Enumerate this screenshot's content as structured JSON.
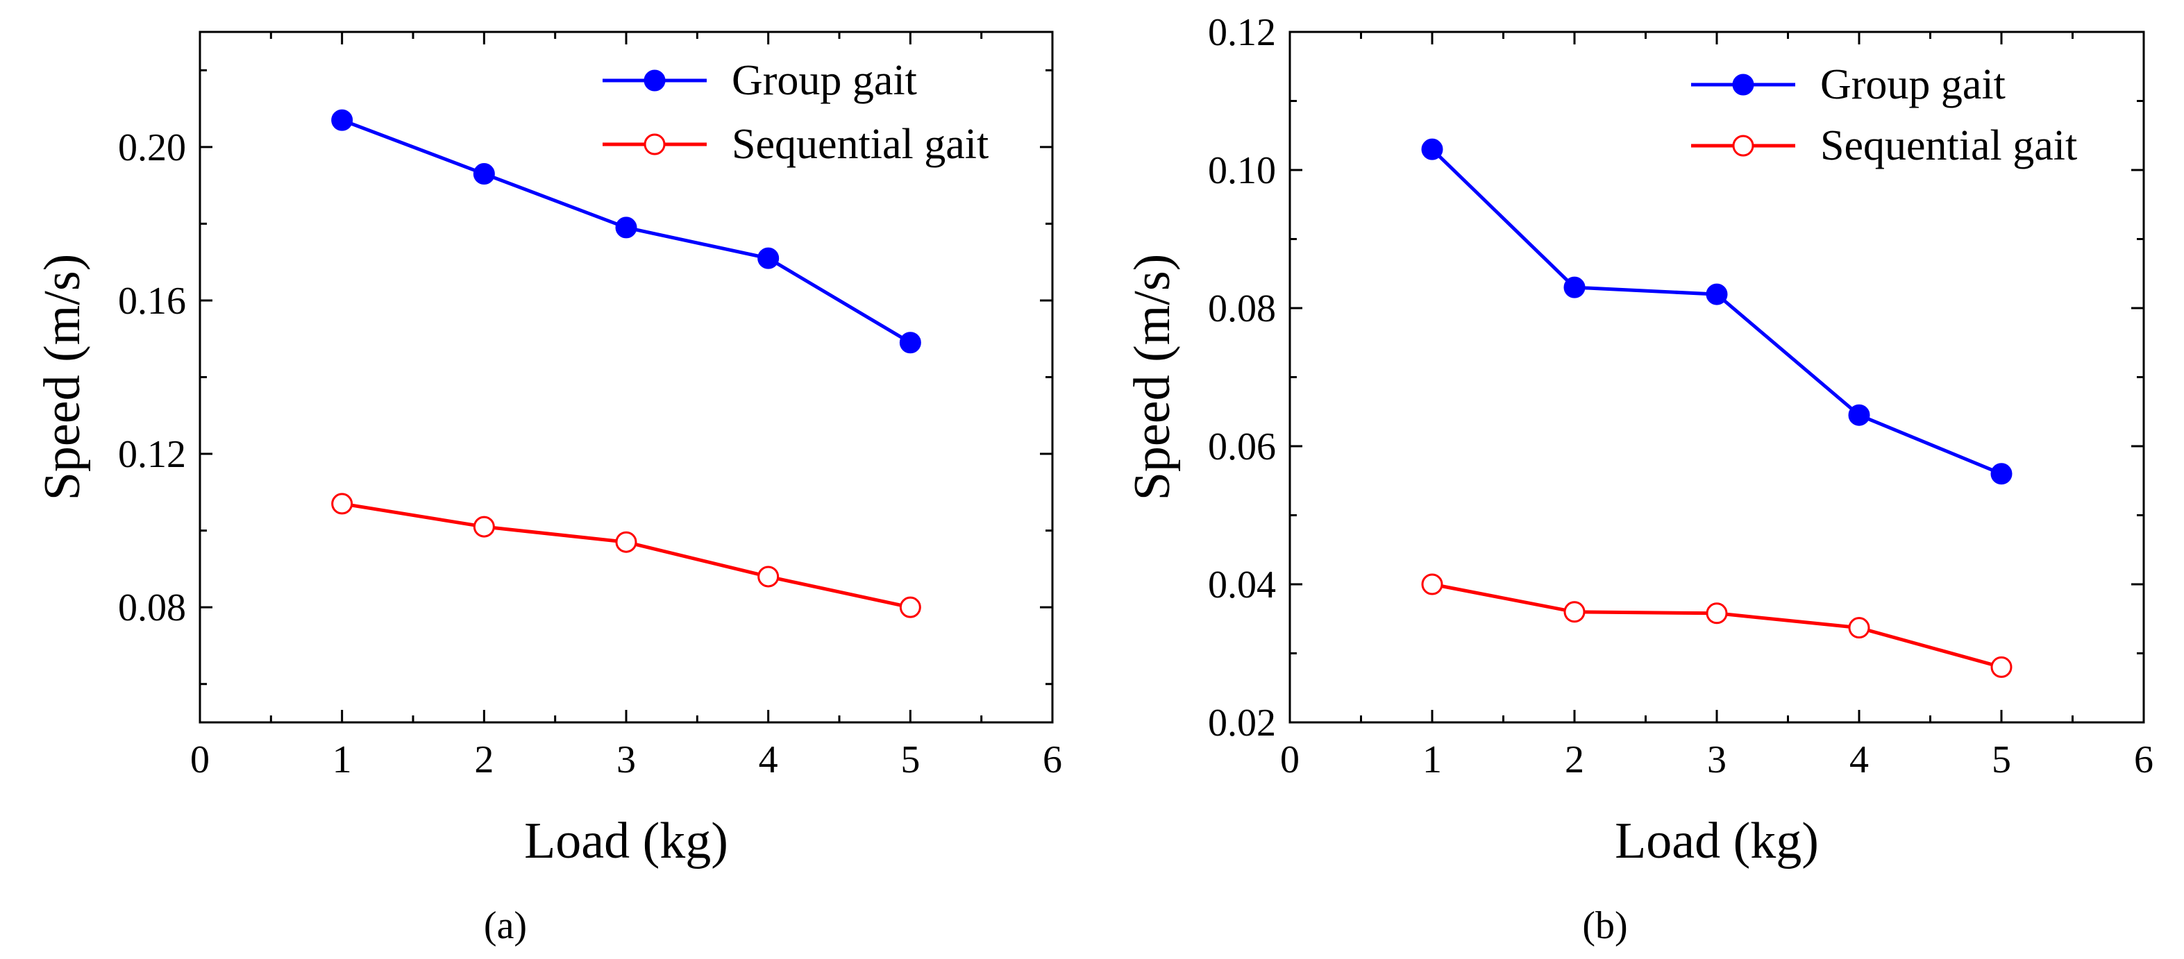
{
  "chart_data": [
    {
      "type": "line",
      "panel_label": "(a)",
      "xlabel": "Load (kg)",
      "ylabel": "Speed (m/s)",
      "xlim": [
        0,
        6
      ],
      "ylim": [
        0.05,
        0.23
      ],
      "xticks": [
        "0",
        "1",
        "2",
        "3",
        "4",
        "5",
        "6"
      ],
      "yticks": [
        "0.08",
        "0.12",
        "0.16",
        "0.20"
      ],
      "ytick_values": [
        0.08,
        0.12,
        0.16,
        0.2
      ],
      "grid": false,
      "legend": "top-right",
      "x": [
        1,
        2,
        3,
        4,
        5
      ],
      "series": [
        {
          "name": "Group gait",
          "color": "#0000ff",
          "marker": "filled-circle",
          "values": [
            0.207,
            0.193,
            0.179,
            0.171,
            0.149
          ]
        },
        {
          "name": "Sequential gait",
          "color": "#ff0000",
          "marker": "open-circle",
          "values": [
            0.107,
            0.101,
            0.097,
            0.088,
            0.08
          ]
        }
      ]
    },
    {
      "type": "line",
      "panel_label": "(b)",
      "xlabel": "Load (kg)",
      "ylabel": "Speed (m/s)",
      "xlim": [
        0,
        6
      ],
      "ylim": [
        0.02,
        0.12
      ],
      "xticks": [
        "0",
        "1",
        "2",
        "3",
        "4",
        "5",
        "6"
      ],
      "yticks": [
        "0.02",
        "0.04",
        "0.06",
        "0.08",
        "0.10",
        "0.12"
      ],
      "ytick_values": [
        0.02,
        0.04,
        0.06,
        0.08,
        0.1,
        0.12
      ],
      "grid": false,
      "legend": "top-right",
      "x": [
        1,
        2,
        3,
        4,
        5
      ],
      "series": [
        {
          "name": "Group gait",
          "color": "#0000ff",
          "marker": "filled-circle",
          "values": [
            0.103,
            0.083,
            0.082,
            0.0645,
            0.056
          ]
        },
        {
          "name": "Sequential gait",
          "color": "#ff0000",
          "marker": "open-circle",
          "values": [
            0.04,
            0.036,
            0.0358,
            0.0337,
            0.028
          ]
        }
      ]
    }
  ]
}
